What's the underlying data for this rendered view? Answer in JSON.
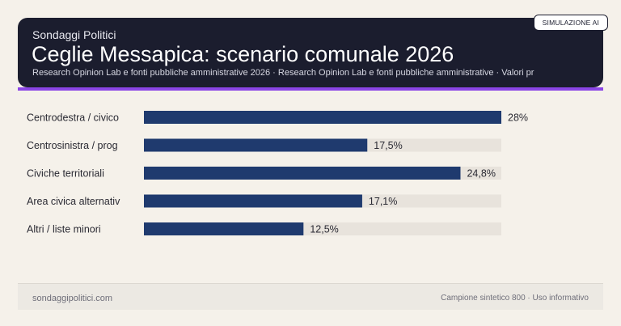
{
  "header": {
    "kicker": "Sondaggi Politici",
    "title": "Ceglie Messapica: scenario comunale 2026",
    "subtitle": "Research Opinion Lab e fonti pubbliche amministrative 2026 · Research Opinion Lab e fonti pubbliche amministrative · Valori pr",
    "badge": "SIMULAZIONE AI"
  },
  "chart_data": {
    "type": "bar",
    "orientation": "horizontal",
    "categories": [
      "Centrodestra / civico",
      "Centrosinistra / prog",
      "Civiche territoriali",
      "Area civica alternativ",
      "Altri / liste minori"
    ],
    "values": [
      28,
      17.5,
      24.8,
      17.1,
      12.5
    ],
    "value_labels": [
      "28%",
      "17,5%",
      "24,8%",
      "17,1%",
      "12,5%"
    ],
    "xlim": [
      0,
      28
    ],
    "bar_color": "#1f3a6e",
    "track_color": "#e8e3dc"
  },
  "footer": {
    "left": "sondaggipolitici.com",
    "right": "Campione sintetico 800 · Uso informativo"
  }
}
